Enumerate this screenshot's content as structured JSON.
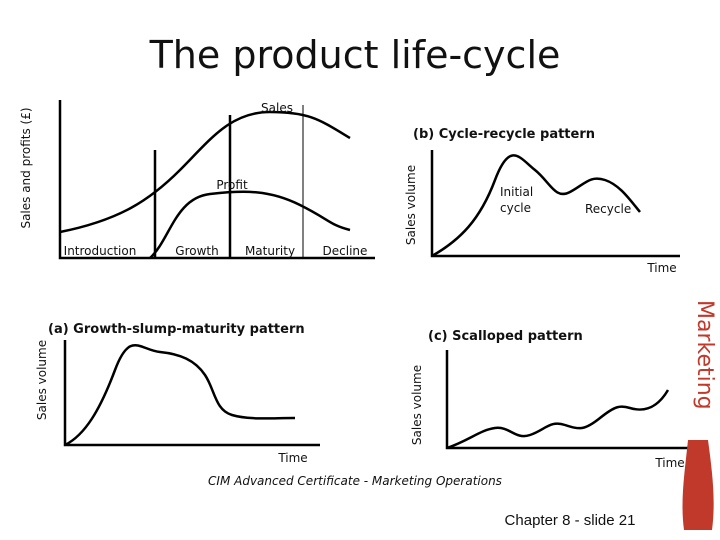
{
  "title": "The product life-cycle",
  "main_diagram": {
    "y_axis": "Sales and profits (£)",
    "curves": [
      "Sales",
      "Profit"
    ],
    "stages": [
      "Introduction",
      "Growth",
      "Maturity",
      "Decline"
    ]
  },
  "diagram_b": {
    "title": "(b) Cycle-recycle pattern",
    "y_axis": "Sales volume",
    "x_axis": "Time",
    "labels": [
      [
        "Initial",
        "cycle"
      ],
      "Recycle"
    ]
  },
  "diagram_a": {
    "title": "(a) Growth-slump-maturity pattern",
    "y_axis": "Sales volume",
    "x_axis": "Time"
  },
  "diagram_c": {
    "title": "(c) Scalloped pattern",
    "y_axis": "Sales volume",
    "x_axis": "Time"
  },
  "source": "CIM Advanced Certificate - Marketing Operations",
  "footer": "Chapter 8 - slide 21",
  "side_text": "Marketing"
}
